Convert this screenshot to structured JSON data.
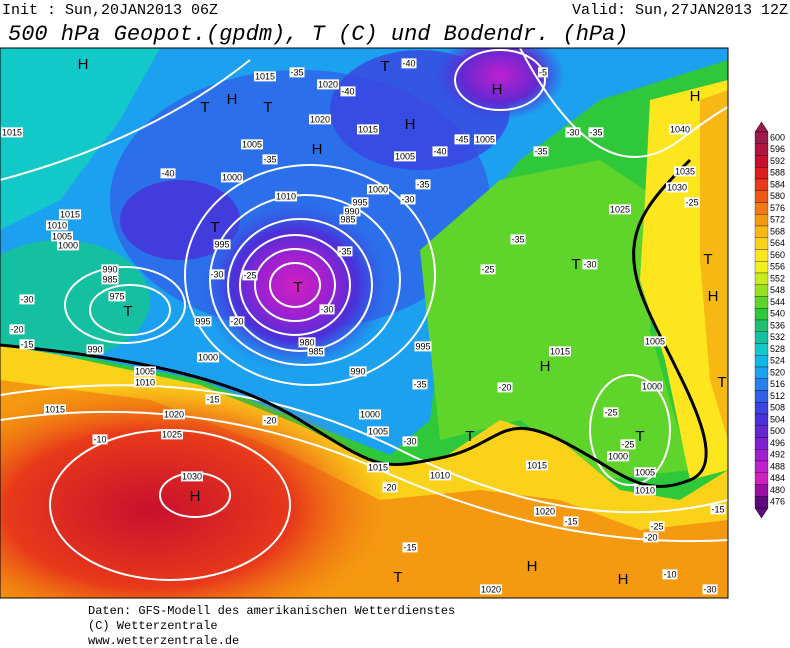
{
  "header": {
    "init": "Init : Sun,20JAN2013 06Z",
    "valid": "Valid: Sun,27JAN2013 12Z",
    "title": "500 hPa Geopot.(gpdm), T (C) und Bodendr. (hPa)"
  },
  "legend": [
    {
      "value": 600,
      "color": "#9b1b4a"
    },
    {
      "value": 596,
      "color": "#b0143f"
    },
    {
      "value": 592,
      "color": "#c8102e"
    },
    {
      "value": 588,
      "color": "#dc1e1e"
    },
    {
      "value": 584,
      "color": "#e83a1a"
    },
    {
      "value": 580,
      "color": "#ee5a16"
    },
    {
      "value": 576,
      "color": "#f27a12"
    },
    {
      "value": 572,
      "color": "#f59a10"
    },
    {
      "value": 568,
      "color": "#f8b814"
    },
    {
      "value": 564,
      "color": "#fbd21a"
    },
    {
      "value": 560,
      "color": "#fde61e"
    },
    {
      "value": 556,
      "color": "#f0f020"
    },
    {
      "value": 552,
      "color": "#c8ec20"
    },
    {
      "value": 548,
      "color": "#98e020"
    },
    {
      "value": 544,
      "color": "#5fd42a"
    },
    {
      "value": 540,
      "color": "#2ec83a"
    },
    {
      "value": 536,
      "color": "#1cc070"
    },
    {
      "value": 532,
      "color": "#14c0a0"
    },
    {
      "value": 528,
      "color": "#12c8c8"
    },
    {
      "value": 524,
      "color": "#10b8e8"
    },
    {
      "value": 520,
      "color": "#1ca0f0"
    },
    {
      "value": 516,
      "color": "#2a80f0"
    },
    {
      "value": 512,
      "color": "#3060e8"
    },
    {
      "value": 508,
      "color": "#3a44e0"
    },
    {
      "value": 504,
      "color": "#4a30d8"
    },
    {
      "value": 500,
      "color": "#6428d0"
    },
    {
      "value": 496,
      "color": "#8020d0"
    },
    {
      "value": 492,
      "color": "#a020d0"
    },
    {
      "value": 488,
      "color": "#c020d0"
    },
    {
      "value": 484,
      "color": "#d020c0"
    },
    {
      "value": 480,
      "color": "#9a10a0"
    },
    {
      "value": 476,
      "color": "#600880"
    }
  ],
  "map": {
    "labels": [
      "H",
      "T",
      "H",
      "H",
      "T",
      "H",
      "T",
      "H",
      "H",
      "T",
      "T",
      "T",
      "T",
      "T",
      "H",
      "H",
      "T",
      "T",
      "H",
      "T",
      "H",
      "H",
      "T",
      "1015",
      "1020",
      "1020",
      "1015",
      "1005",
      "1005",
      "1000",
      "1010",
      "1000",
      "995",
      "990",
      "985",
      "995",
      "1015",
      "1015",
      "1010",
      "1005",
      "1000",
      "990",
      "985",
      "975",
      "995",
      "990",
      "1000",
      "1005",
      "1010",
      "1015",
      "1020",
      "1025",
      "1030",
      "980",
      "985",
      "990",
      "995",
      "1000",
      "1005",
      "1010",
      "1015",
      "1015",
      "1020",
      "1020",
      "1025",
      "1030",
      "1035",
      "1040",
      "1005",
      "1000",
      "1000",
      "1005",
      "1010",
      "1015",
      "1005",
      "-35",
      "-40",
      "-40",
      "-5",
      "-35",
      "-40",
      "-35",
      "-30",
      "-35",
      "-30",
      "-25",
      "-30",
      "-20",
      "-15",
      "-20",
      "-30",
      "-35",
      "-25",
      "-20",
      "-30",
      "-15",
      "-20",
      "-10",
      "-20",
      "-15",
      "-15",
      "-25",
      "-20",
      "-15",
      "-10",
      "-25",
      "-35",
      "-30",
      "-40",
      "-45",
      "-30",
      "-35",
      "-35",
      "-25",
      "-25",
      "-30"
    ]
  },
  "footer": {
    "lines": [
      "Daten: GFS-Modell des amerikanischen Wetterdienstes",
      "(C) Wetterzentrale",
      "www.wetterzentrale.de"
    ]
  }
}
